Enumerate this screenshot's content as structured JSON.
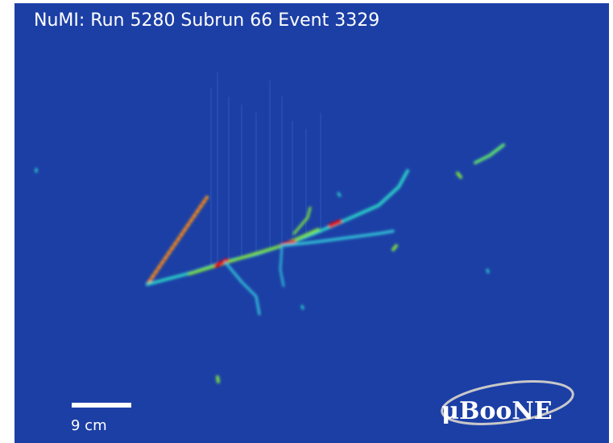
{
  "header": {
    "title": "NuMI: Run 5280 Subrun 66 Event 3329"
  },
  "scale_bar": {
    "label": "9 cm"
  },
  "logo": {
    "text": "μBooNE"
  }
}
